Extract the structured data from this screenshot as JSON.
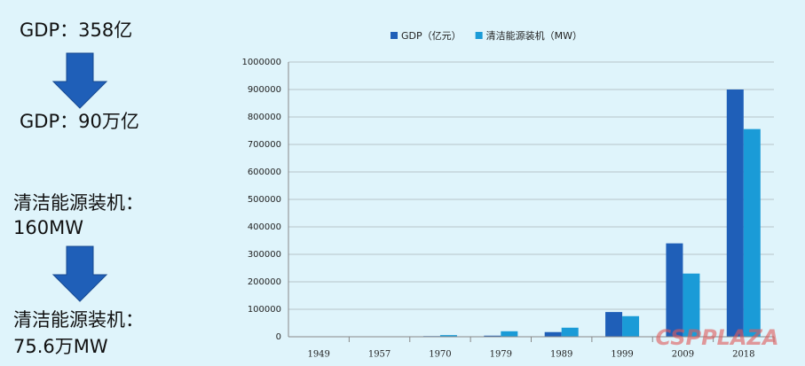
{
  "left_panel": {
    "lines": [
      "GDP：358亿",
      "GDP：90万亿",
      "清洁能源装机：",
      "160MW",
      "清洁能源装机：",
      "75.6万MW"
    ]
  },
  "watermark": "CSPPLAZA",
  "chart_data": {
    "type": "bar",
    "categories": [
      "1949",
      "1957",
      "1970",
      "1979",
      "1989",
      "1999",
      "2009",
      "2018"
    ],
    "series": [
      {
        "name": "GDP（亿元）",
        "color": "#1f5fb8",
        "values": [
          358,
          1000,
          2300,
          4000,
          17000,
          90000,
          340000,
          900000
        ]
      },
      {
        "name": "清洁能源装机（MW）",
        "color": "#1a9bd7",
        "values": [
          160,
          1000,
          6000,
          20000,
          33000,
          75000,
          230000,
          756000
        ]
      }
    ],
    "ylim": [
      0,
      1000000
    ],
    "yticks": [
      0,
      100000,
      200000,
      300000,
      400000,
      500000,
      600000,
      700000,
      800000,
      900000,
      1000000
    ],
    "grid": true,
    "legend": "top"
  }
}
